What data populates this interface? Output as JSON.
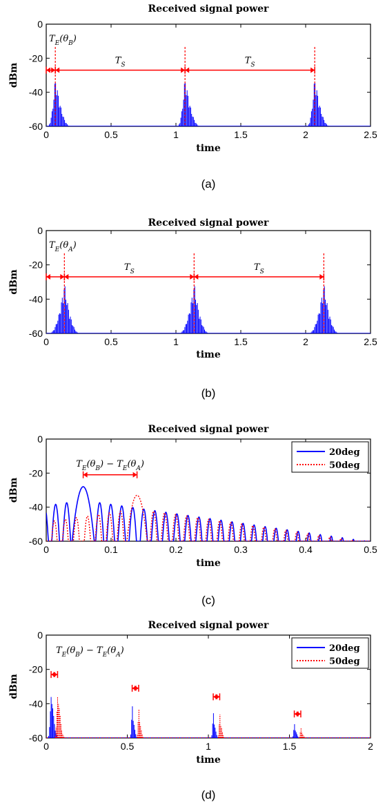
{
  "chart_data": [
    {
      "type": "line",
      "title": "Received signal power",
      "xlabel": "time",
      "ylabel": "dBm",
      "xlim": [
        0,
        2.5
      ],
      "ylim": [
        -60,
        0
      ],
      "xticks": [
        "0",
        "0.5",
        "1",
        "1.5",
        "2",
        "2.5"
      ],
      "yticks": [
        "0",
        "-20",
        "-40",
        "-60"
      ],
      "caption": "(a)",
      "series": [
        {
          "color": "#0000ff",
          "style": "solid",
          "peaks": [
            {
              "x": 0.07,
              "y": -30
            },
            {
              "x": 1.07,
              "y": -30
            },
            {
              "x": 2.07,
              "y": -30
            }
          ]
        }
      ],
      "markers": [
        0.07,
        1.07,
        2.07
      ],
      "arrow_y": -27,
      "annotations": [
        "T_E(θ_B)",
        "T_S",
        "T_S"
      ]
    },
    {
      "type": "line",
      "title": "Received signal power",
      "xlabel": "time",
      "ylabel": "dBm",
      "xlim": [
        0,
        2.5
      ],
      "ylim": [
        -60,
        0
      ],
      "xticks": [
        "0",
        "0.5",
        "1",
        "1.5",
        "2",
        "2.5"
      ],
      "yticks": [
        "0",
        "-20",
        "-40",
        "-60"
      ],
      "caption": "(b)",
      "series": [
        {
          "color": "#0000ff",
          "style": "solid",
          "peaks": [
            {
              "x": 0.14,
              "y": -30
            },
            {
              "x": 1.14,
              "y": -30
            },
            {
              "x": 2.14,
              "y": -30
            }
          ]
        }
      ],
      "markers": [
        0.14,
        1.14,
        2.14
      ],
      "arrow_y": -27,
      "annotations": [
        "T_E(θ_A)",
        "T_S",
        "T_S"
      ]
    },
    {
      "type": "line",
      "title": "Received signal power",
      "xlabel": "time",
      "ylabel": "dBm",
      "xlim": [
        0,
        0.5
      ],
      "ylim": [
        -60,
        0
      ],
      "xticks": [
        "0",
        "0.1",
        "0.2",
        "0.3",
        "0.4",
        "0.5"
      ],
      "yticks": [
        "0",
        "-20",
        "-40",
        "-60"
      ],
      "caption": "(c)",
      "series": [
        {
          "name": "20deg",
          "color": "#0000ff",
          "style": "solid",
          "peak_x": 0.057,
          "peak_y": -28
        },
        {
          "name": "50deg",
          "color": "#ff0000",
          "style": "dotted",
          "peak_x": 0.14,
          "peak_y": -33
        }
      ],
      "arrow": {
        "x1": 0.057,
        "x2": 0.14,
        "y": -21
      },
      "annotation": "T_E(θ_B) − T_E(θ_A)"
    },
    {
      "type": "line",
      "title": "Received signal power",
      "xlabel": "time",
      "ylabel": "dBm",
      "xlim": [
        0,
        2
      ],
      "ylim": [
        -60,
        0
      ],
      "xticks": [
        "0",
        "0.5",
        "1",
        "1.5",
        "2"
      ],
      "yticks": [
        "0",
        "-20",
        "-40",
        "-60"
      ],
      "caption": "(d)",
      "series": [
        {
          "name": "20deg",
          "color": "#0000ff",
          "style": "solid",
          "peaks": [
            {
              "x": 0.03,
              "y": -28
            },
            {
              "x": 0.53,
              "y": -37
            },
            {
              "x": 1.03,
              "y": -42
            },
            {
              "x": 1.53,
              "y": -50
            }
          ]
        },
        {
          "name": "50deg",
          "color": "#ff0000",
          "style": "dotted",
          "peaks": [
            {
              "x": 0.07,
              "y": -28
            },
            {
              "x": 0.57,
              "y": -39
            },
            {
              "x": 1.07,
              "y": -43
            },
            {
              "x": 1.57,
              "y": -53
            }
          ]
        }
      ],
      "arrows": [
        {
          "x1": 0.03,
          "x2": 0.07,
          "y": -23
        },
        {
          "x1": 0.53,
          "x2": 0.57,
          "y": -31
        },
        {
          "x1": 1.03,
          "x2": 1.07,
          "y": -36
        },
        {
          "x1": 1.53,
          "x2": 1.57,
          "y": -46
        }
      ],
      "annotation": "T_E(θ_B) − T_E(θ_A)"
    }
  ]
}
